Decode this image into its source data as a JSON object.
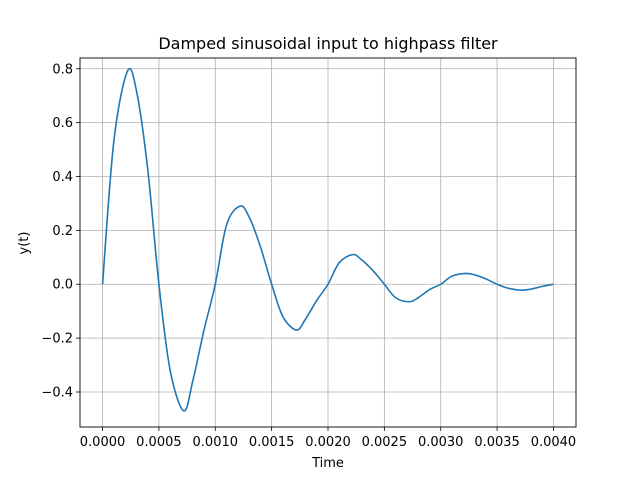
{
  "chart_data": {
    "type": "line",
    "title": "Damped sinusoidal input to highpass filter",
    "xlabel": "Time",
    "ylabel": "y(t)",
    "xlim": [
      -0.0002,
      0.0042
    ],
    "ylim": [
      -0.53,
      0.84
    ],
    "grid": true,
    "x_ticks": [
      0.0,
      0.0005,
      0.001,
      0.0015,
      0.002,
      0.0025,
      0.003,
      0.0035,
      0.004
    ],
    "x_tick_labels": [
      "0.0000",
      "0.0005",
      "0.0010",
      "0.0015",
      "0.0020",
      "0.0025",
      "0.0030",
      "0.0035",
      "0.0040"
    ],
    "y_ticks": [
      -0.4,
      -0.2,
      0.0,
      0.2,
      0.4,
      0.6,
      0.8
    ],
    "y_tick_labels": [
      "−0.4",
      "−0.2",
      "0.0",
      "0.2",
      "0.4",
      "0.6",
      "0.8"
    ],
    "series": [
      {
        "color": "#1f77b4",
        "x": [
          0.0,
          0.0001,
          0.00022,
          0.0003,
          0.0004,
          0.0005,
          0.0006,
          0.00072,
          0.0008,
          0.0009,
          0.001,
          0.0011,
          0.00122,
          0.0013,
          0.0014,
          0.0015,
          0.0016,
          0.00172,
          0.0018,
          0.0019,
          0.002,
          0.0021,
          0.00222,
          0.0023,
          0.0024,
          0.0025,
          0.0026,
          0.00272,
          0.0028,
          0.0029,
          0.003,
          0.0031,
          0.00322,
          0.0033,
          0.0034,
          0.0035,
          0.0036,
          0.00372,
          0.0038,
          0.0039,
          0.004
        ],
        "y": [
          0.0,
          0.53,
          0.79,
          0.72,
          0.43,
          0.0,
          -0.32,
          -0.47,
          -0.36,
          -0.17,
          0.0,
          0.22,
          0.29,
          0.25,
          0.14,
          0.0,
          -0.12,
          -0.17,
          -0.13,
          -0.06,
          0.0,
          0.08,
          0.11,
          0.09,
          0.05,
          0.0,
          -0.05,
          -0.065,
          -0.05,
          -0.02,
          0.0,
          0.03,
          0.04,
          0.035,
          0.02,
          0.0,
          -0.015,
          -0.022,
          -0.018,
          -0.008,
          0.0
        ]
      }
    ]
  }
}
